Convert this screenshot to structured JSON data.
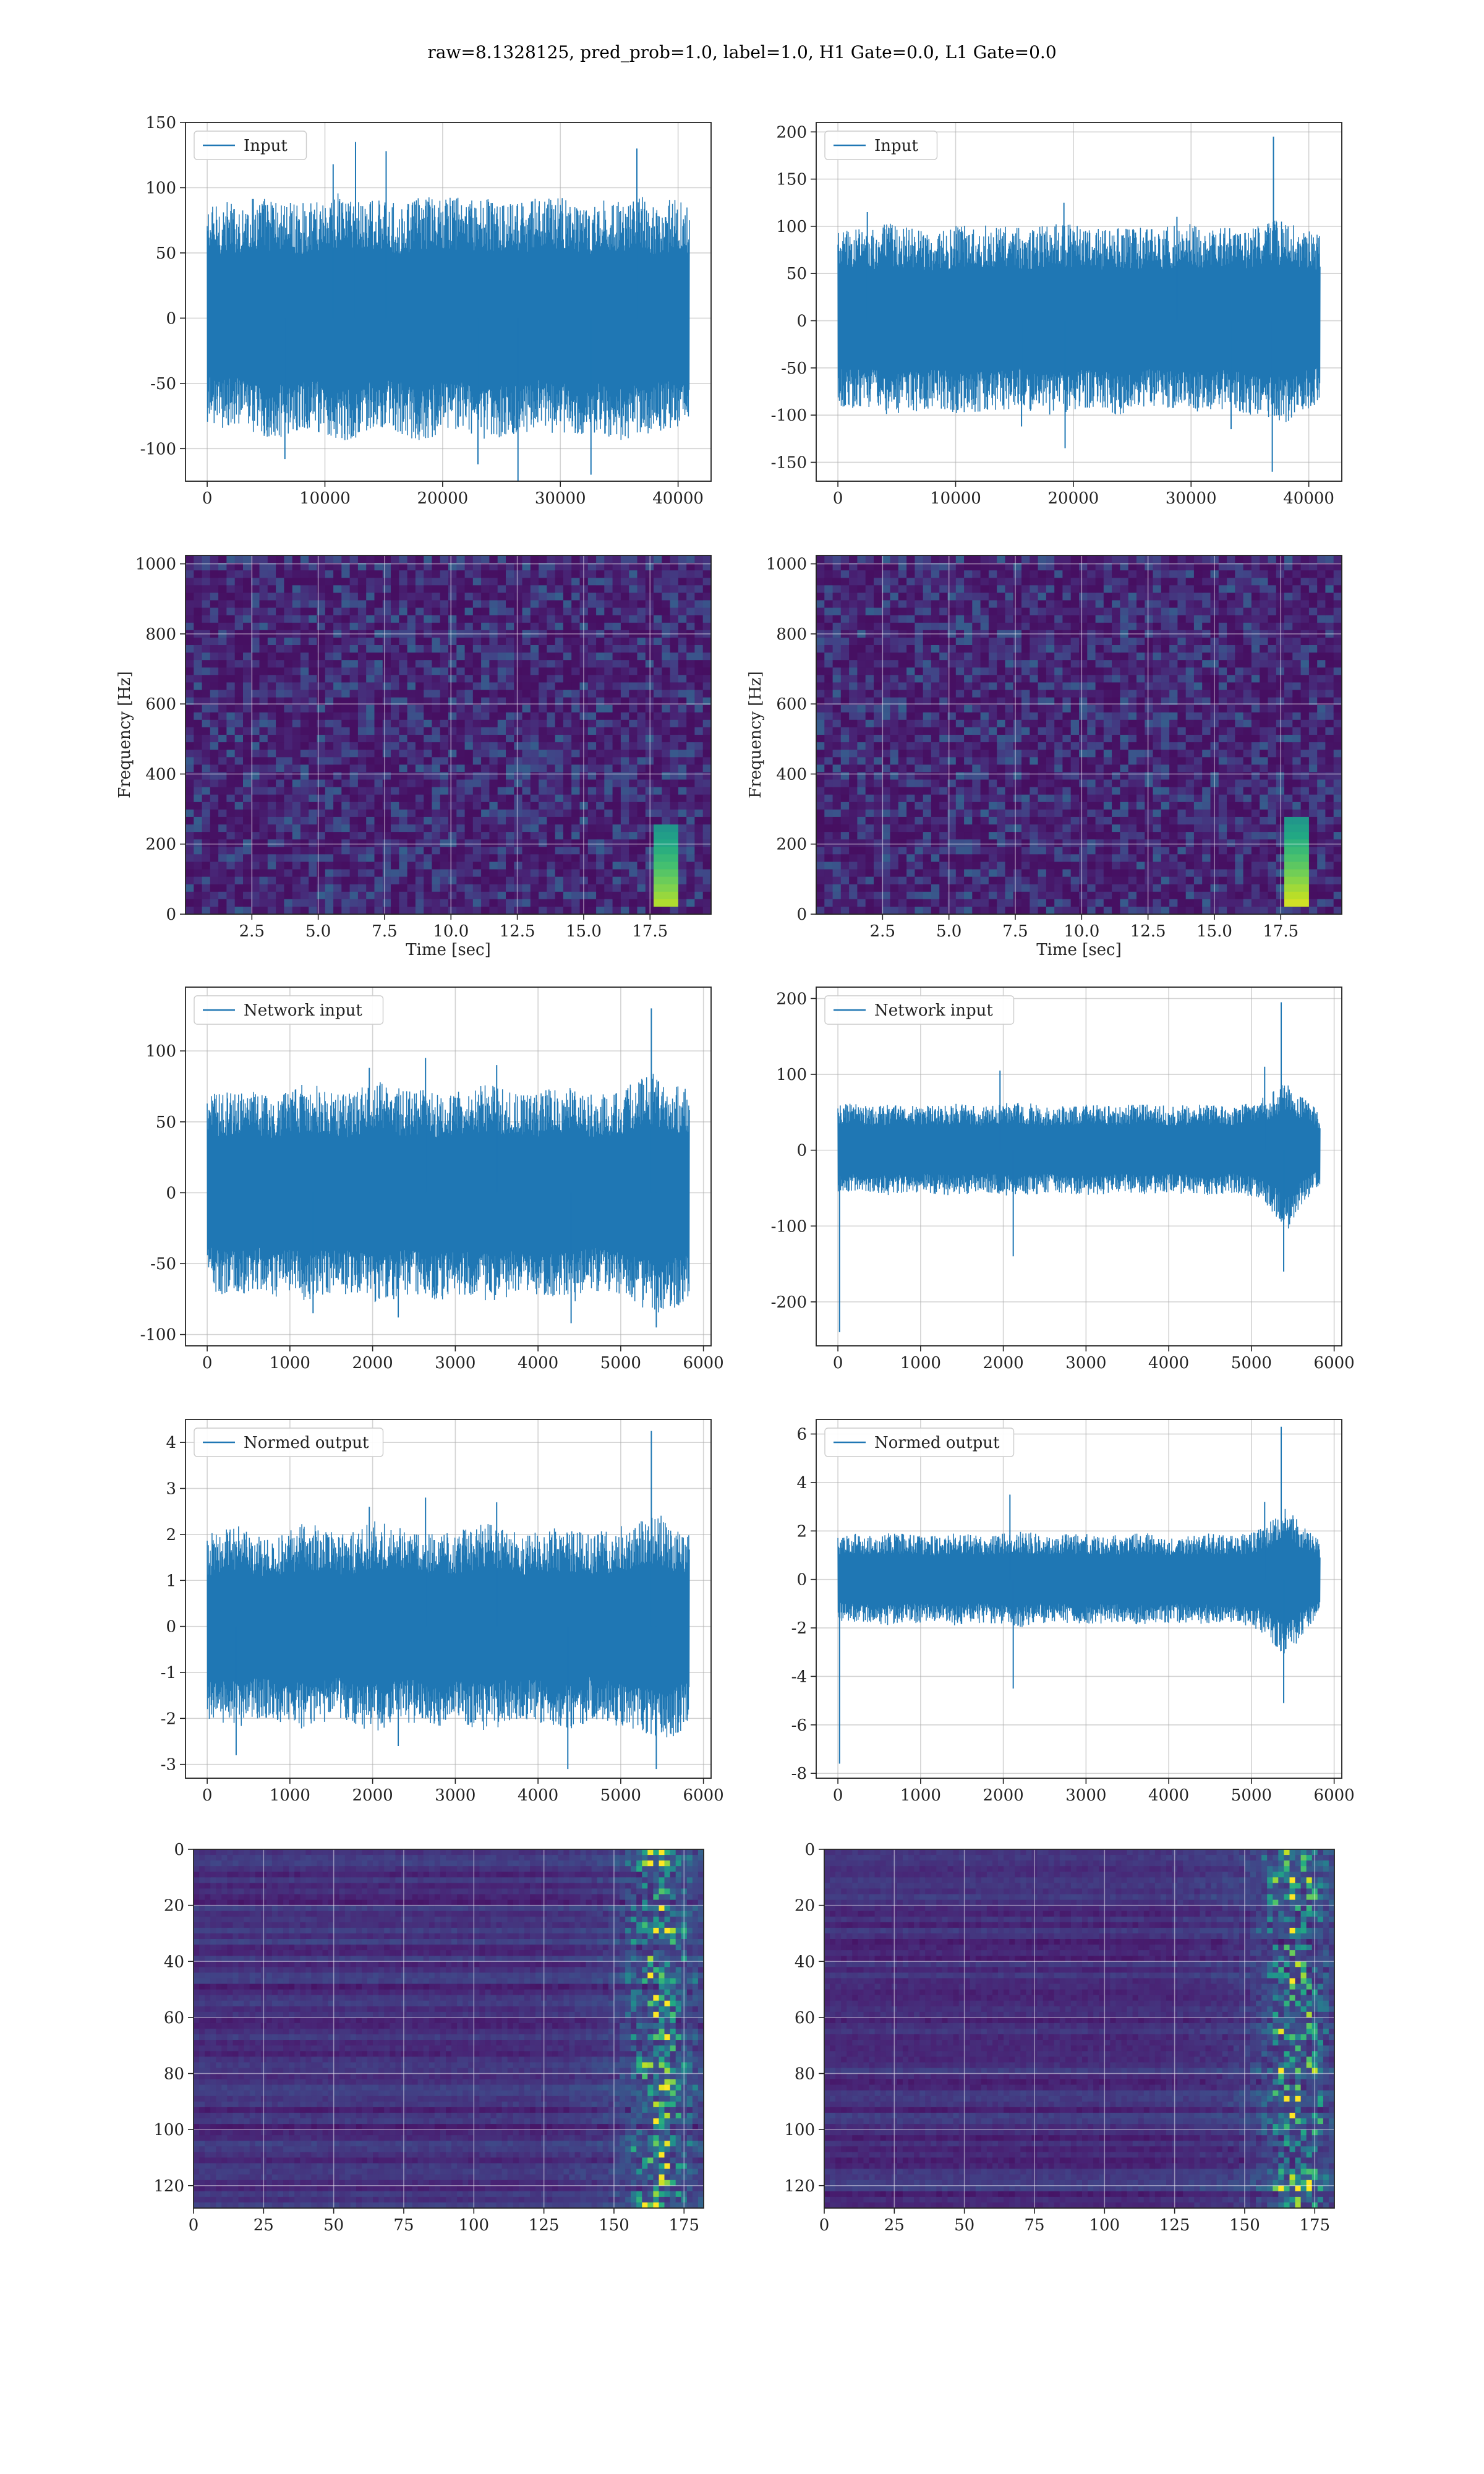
{
  "figure": {
    "suptitle": "raw=8.1328125, pred_prob=1.0, label=1.0, H1 Gate=0.0, L1 Gate=0.0"
  },
  "chart_data": [
    {
      "id": "input_h1",
      "type": "line",
      "legend": "Input",
      "legend_placement": "upper-left",
      "grid": true,
      "x_range": [
        0,
        40960
      ],
      "ylim": [
        -125,
        150
      ],
      "xticks": [
        0,
        10000,
        20000,
        30000,
        40000
      ],
      "yticks": [
        -100,
        -50,
        0,
        50,
        100,
        150
      ],
      "series": [
        {
          "color": "#1f77b4",
          "x_start": 0,
          "x_end": 40960,
          "envelope_upper": [
            85,
            90,
            88,
            95,
            92,
            90,
            88,
            95,
            97,
            94,
            92,
            88,
            90,
            95,
            92,
            95,
            90,
            92,
            88,
            90,
            92,
            95,
            90,
            85,
            92,
            90,
            95,
            88,
            92,
            90
          ],
          "envelope_lower": [
            -80,
            -85,
            -82,
            -90,
            -95,
            -88,
            -85,
            -90,
            -95,
            -92,
            -88,
            -85,
            -92,
            -95,
            -90,
            -88,
            -92,
            -95,
            -90,
            -88,
            -85,
            -92,
            -90,
            -88,
            -92,
            -95,
            -90,
            -88,
            -85,
            -82
          ],
          "spikes": [
            {
              "x": 12600,
              "y": 135
            },
            {
              "x": 15200,
              "y": 128
            },
            {
              "x": 36500,
              "y": 130
            },
            {
              "x": 26400,
              "y": -125
            },
            {
              "x": 23000,
              "y": -112
            },
            {
              "x": 6600,
              "y": -108
            },
            {
              "x": 10700,
              "y": 118
            },
            {
              "x": 32600,
              "y": -120
            }
          ]
        }
      ]
    },
    {
      "id": "input_l1",
      "type": "line",
      "legend": "Input",
      "legend_placement": "upper-left",
      "grid": true,
      "x_range": [
        0,
        40960
      ],
      "ylim": [
        -170,
        210
      ],
      "xticks": [
        0,
        10000,
        20000,
        30000,
        40000
      ],
      "yticks": [
        -150,
        -100,
        -50,
        0,
        50,
        100,
        150,
        200
      ],
      "series": [
        {
          "color": "#1f77b4",
          "x_start": 0,
          "x_end": 40960,
          "envelope_upper": [
            95,
            100,
            98,
            105,
            100,
            98,
            95,
            100,
            104,
            102,
            100,
            98,
            100,
            105,
            102,
            100,
            98,
            102,
            100,
            98,
            100,
            104,
            100,
            98,
            102,
            100,
            105,
            110,
            100,
            95
          ],
          "envelope_lower": [
            -90,
            -95,
            -92,
            -100,
            -98,
            -95,
            -92,
            -98,
            -100,
            -96,
            -95,
            -92,
            -98,
            -100,
            -96,
            -94,
            -98,
            -100,
            -95,
            -92,
            -95,
            -98,
            -96,
            -94,
            -98,
            -100,
            -105,
            -110,
            -96,
            -90
          ],
          "spikes": [
            {
              "x": 37000,
              "y": 195
            },
            {
              "x": 19200,
              "y": 125
            },
            {
              "x": 36900,
              "y": -160
            },
            {
              "x": 19300,
              "y": -135
            },
            {
              "x": 2500,
              "y": 115
            },
            {
              "x": 15600,
              "y": -112
            },
            {
              "x": 28800,
              "y": 110
            },
            {
              "x": 33400,
              "y": -115
            }
          ]
        }
      ]
    },
    {
      "id": "spec_h1",
      "type": "heatmap",
      "grid": true,
      "colormap": "viridis",
      "xlabel": "Time [sec]",
      "ylabel": "Frequency [Hz]",
      "x_range": [
        0,
        19.8
      ],
      "ylim": [
        0,
        1024
      ],
      "xticks": [
        "2.5",
        "5.0",
        "7.5",
        "10.0",
        "12.5",
        "15.0",
        "17.5"
      ],
      "yticks": [
        0,
        200,
        400,
        600,
        800,
        1000
      ],
      "features": [
        {
          "t": 18.1,
          "f_low": 20,
          "f_high": 260,
          "intensity": 0.9
        }
      ]
    },
    {
      "id": "spec_l1",
      "type": "heatmap",
      "grid": true,
      "colormap": "viridis",
      "xlabel": "Time [sec]",
      "ylabel": "Frequency [Hz]",
      "x_range": [
        0,
        19.8
      ],
      "ylim": [
        0,
        1024
      ],
      "xticks": [
        "2.5",
        "5.0",
        "7.5",
        "10.0",
        "12.5",
        "15.0",
        "17.5"
      ],
      "yticks": [
        0,
        200,
        400,
        600,
        800,
        1000
      ],
      "features": [
        {
          "t": 18.1,
          "f_low": 20,
          "f_high": 270,
          "intensity": 0.95
        }
      ]
    },
    {
      "id": "net_h1",
      "type": "line",
      "legend": "Network input",
      "legend_placement": "upper-left",
      "grid": true,
      "x_range": [
        0,
        5830
      ],
      "ylim": [
        -108,
        145
      ],
      "xticks": [
        0,
        1000,
        2000,
        3000,
        4000,
        5000,
        6000
      ],
      "yticks": [
        -100,
        -50,
        0,
        50,
        100
      ],
      "series": [
        {
          "color": "#1f77b4",
          "x_start": 0,
          "x_end": 5830,
          "envelope_upper": [
            70,
            72,
            75,
            70,
            68,
            72,
            78,
            74,
            70,
            72,
            80,
            76,
            72,
            74,
            70,
            72,
            75,
            78,
            74,
            70,
            72,
            76,
            74,
            70,
            72,
            75,
            80,
            85,
            78,
            72
          ],
          "envelope_lower": [
            -70,
            -72,
            -75,
            -70,
            -74,
            -72,
            -78,
            -74,
            -70,
            -75,
            -80,
            -76,
            -72,
            -74,
            -76,
            -72,
            -75,
            -78,
            -74,
            -70,
            -72,
            -76,
            -78,
            -70,
            -72,
            -75,
            -80,
            -85,
            -82,
            -75
          ],
          "spikes": [
            {
              "x": 5370,
              "y": 130
            },
            {
              "x": 5430,
              "y": -95
            },
            {
              "x": 2310,
              "y": -88
            },
            {
              "x": 2640,
              "y": 95
            },
            {
              "x": 1960,
              "y": 88
            },
            {
              "x": 4400,
              "y": -92
            },
            {
              "x": 3500,
              "y": 90
            },
            {
              "x": 1280,
              "y": -85
            }
          ]
        }
      ]
    },
    {
      "id": "net_l1",
      "type": "line",
      "legend": "Network input",
      "legend_placement": "upper-left",
      "grid": true,
      "x_range": [
        0,
        5830
      ],
      "ylim": [
        -258,
        215
      ],
      "xticks": [
        0,
        1000,
        2000,
        3000,
        4000,
        5000,
        6000
      ],
      "yticks": [
        -200,
        -100,
        0,
        100,
        200
      ],
      "series": [
        {
          "color": "#1f77b4",
          "x_start": 0,
          "x_end": 5830,
          "envelope_upper": [
            60,
            62,
            58,
            60,
            62,
            60,
            58,
            62,
            60,
            58,
            62,
            64,
            60,
            58,
            60,
            62,
            60,
            58,
            62,
            60,
            58,
            60,
            62,
            60,
            58,
            65,
            75,
            95,
            70,
            50
          ],
          "envelope_lower": [
            -55,
            -58,
            -56,
            -60,
            -58,
            -56,
            -58,
            -60,
            -58,
            -56,
            -60,
            -62,
            -58,
            -56,
            -58,
            -60,
            -58,
            -56,
            -60,
            -58,
            -56,
            -58,
            -60,
            -58,
            -56,
            -65,
            -80,
            -110,
            -70,
            -45
          ],
          "spikes": [
            {
              "x": 20,
              "y": -240
            },
            {
              "x": 5360,
              "y": 195
            },
            {
              "x": 5390,
              "y": -160
            },
            {
              "x": 2120,
              "y": -140
            },
            {
              "x": 1960,
              "y": 105
            },
            {
              "x": 5160,
              "y": 110
            }
          ]
        }
      ]
    },
    {
      "id": "norm_h1",
      "type": "line",
      "legend": "Normed output",
      "legend_placement": "upper-left",
      "grid": true,
      "x_range": [
        0,
        5830
      ],
      "ylim": [
        -3.3,
        4.5
      ],
      "xticks": [
        0,
        1000,
        2000,
        3000,
        4000,
        5000,
        6000
      ],
      "yticks": [
        -3,
        -2,
        -1,
        0,
        1,
        2,
        3,
        4
      ],
      "series": [
        {
          "color": "#1f77b4",
          "x_start": 0,
          "x_end": 5830,
          "envelope_upper": [
            2.0,
            2.1,
            2.2,
            2.0,
            1.9,
            2.1,
            2.3,
            2.1,
            2.0,
            2.1,
            2.3,
            2.2,
            2.1,
            2.1,
            2.0,
            2.1,
            2.2,
            2.3,
            2.1,
            2.0,
            2.1,
            2.2,
            2.1,
            2.0,
            2.1,
            2.2,
            2.3,
            2.5,
            2.2,
            2.1
          ],
          "envelope_lower": [
            -2.0,
            -2.1,
            -2.2,
            -2.0,
            -2.1,
            -2.1,
            -2.3,
            -2.1,
            -2.0,
            -2.2,
            -2.3,
            -2.2,
            -2.1,
            -2.1,
            -2.2,
            -2.1,
            -2.2,
            -2.3,
            -2.1,
            -2.0,
            -2.1,
            -2.2,
            -2.3,
            -2.0,
            -2.1,
            -2.2,
            -2.3,
            -2.5,
            -2.4,
            -2.2
          ],
          "spikes": [
            {
              "x": 5370,
              "y": 4.25
            },
            {
              "x": 5430,
              "y": -3.1
            },
            {
              "x": 2310,
              "y": -2.6
            },
            {
              "x": 2640,
              "y": 2.8
            },
            {
              "x": 4360,
              "y": -3.1
            },
            {
              "x": 1960,
              "y": 2.6
            },
            {
              "x": 350,
              "y": -2.8
            },
            {
              "x": 3500,
              "y": 2.7
            }
          ]
        }
      ]
    },
    {
      "id": "norm_l1",
      "type": "line",
      "legend": "Normed output",
      "legend_placement": "upper-left",
      "grid": true,
      "x_range": [
        0,
        5830
      ],
      "ylim": [
        -8.2,
        6.6
      ],
      "xticks": [
        0,
        1000,
        2000,
        3000,
        4000,
        5000,
        6000
      ],
      "yticks": [
        -8,
        -6,
        -4,
        -2,
        0,
        2,
        4,
        6
      ],
      "series": [
        {
          "color": "#1f77b4",
          "x_start": 0,
          "x_end": 5830,
          "envelope_upper": [
            1.8,
            1.9,
            1.8,
            1.9,
            1.9,
            1.8,
            1.8,
            1.9,
            1.9,
            1.8,
            1.9,
            2.0,
            1.9,
            1.8,
            1.9,
            1.9,
            1.9,
            1.8,
            1.9,
            1.9,
            1.8,
            1.9,
            1.9,
            1.9,
            1.8,
            2.0,
            2.4,
            3.0,
            2.2,
            1.6
          ],
          "envelope_lower": [
            -1.7,
            -1.8,
            -1.8,
            -1.9,
            -1.8,
            -1.8,
            -1.8,
            -1.9,
            -1.8,
            -1.8,
            -1.9,
            -2.0,
            -1.8,
            -1.8,
            -1.8,
            -1.9,
            -1.8,
            -1.8,
            -1.9,
            -1.8,
            -1.8,
            -1.8,
            -1.9,
            -1.8,
            -1.8,
            -2.0,
            -2.5,
            -3.4,
            -2.2,
            -1.4
          ],
          "spikes": [
            {
              "x": 20,
              "y": -7.6
            },
            {
              "x": 5360,
              "y": 6.3
            },
            {
              "x": 5390,
              "y": -5.1
            },
            {
              "x": 2120,
              "y": -4.5
            },
            {
              "x": 2080,
              "y": 3.5
            },
            {
              "x": 5160,
              "y": 3.2
            }
          ]
        }
      ]
    },
    {
      "id": "feat_h1",
      "type": "heatmap",
      "grid": true,
      "colormap": "viridis",
      "x_range": [
        0,
        182
      ],
      "ylim": [
        0,
        128
      ],
      "y_inverted": true,
      "xticks": [
        0,
        25,
        50,
        75,
        100,
        125,
        150,
        175
      ],
      "yticks": [
        0,
        20,
        40,
        60,
        80,
        100,
        120
      ],
      "features": [
        {
          "x_start": 125,
          "x_peak": 166,
          "intensity": 0.85
        }
      ]
    },
    {
      "id": "feat_l1",
      "type": "heatmap",
      "grid": true,
      "colormap": "viridis",
      "x_range": [
        0,
        182
      ],
      "ylim": [
        0,
        128
      ],
      "y_inverted": true,
      "xticks": [
        0,
        25,
        50,
        75,
        100,
        125,
        150,
        175
      ],
      "yticks": [
        0,
        20,
        40,
        60,
        80,
        100,
        120
      ],
      "features": [
        {
          "x_start": 120,
          "x_peak": 168,
          "intensity": 0.95
        }
      ]
    }
  ]
}
